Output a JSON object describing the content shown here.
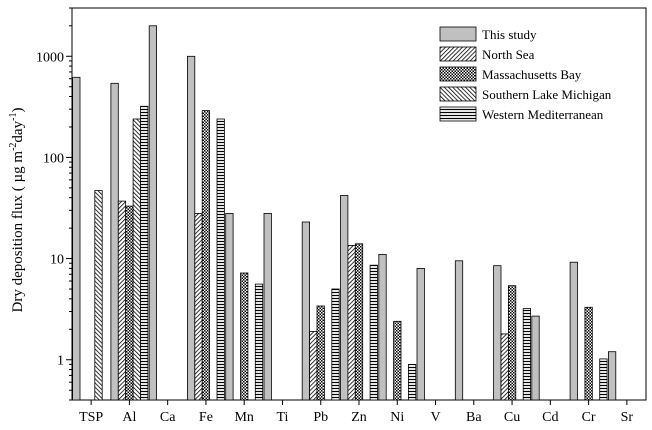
{
  "chart_data": {
    "type": "bar",
    "ylabel": "Dry deposition flux ( µg m",
    "ylabel_sup1": "-2",
    "ylabel_mid": "day",
    "ylabel_sup2": "-1",
    "ylabel_end": ")",
    "y_scale": "log",
    "ylim": [
      0.4,
      3000
    ],
    "y_ticks": [
      1,
      10,
      100,
      1000
    ],
    "y_tick_labels": [
      "1",
      "10",
      "100",
      "1000"
    ],
    "legend_position": "top-right",
    "categories": [
      "TSP",
      "Al",
      "Ca",
      "Fe",
      "Mn",
      "Ti",
      "Pb",
      "Zn",
      "Ni",
      "V",
      "Ba",
      "Cu",
      "Cd",
      "Cr",
      "Sr"
    ],
    "series": [
      {
        "name": "This study",
        "pattern": "solid-gray",
        "values": [
          620,
          540,
          2000,
          1000,
          28,
          28,
          23,
          42,
          11,
          8,
          9.5,
          8.5,
          2.7,
          9.2,
          1.2
        ]
      },
      {
        "name": "North Sea",
        "pattern": "diag-right",
        "values": [
          null,
          37,
          null,
          28,
          null,
          null,
          1.9,
          13.5,
          null,
          null,
          null,
          1.8,
          null,
          null,
          null
        ]
      },
      {
        "name": "Massachusetts Bay",
        "pattern": "dots",
        "values": [
          null,
          33,
          null,
          290,
          7.2,
          null,
          3.4,
          14,
          2.4,
          null,
          null,
          5.4,
          0.35,
          3.3,
          null
        ]
      },
      {
        "name": "Southern Lake Michigan",
        "pattern": "diag-left",
        "values": [
          47,
          240,
          null,
          null,
          null,
          null,
          null,
          null,
          null,
          null,
          null,
          null,
          null,
          null,
          null
        ]
      },
      {
        "name": "Western Mediterranean",
        "pattern": "horiz",
        "values": [
          null,
          320,
          null,
          240,
          5.6,
          null,
          5.0,
          8.6,
          0.9,
          null,
          null,
          3.2,
          null,
          1.02,
          null
        ]
      }
    ]
  }
}
